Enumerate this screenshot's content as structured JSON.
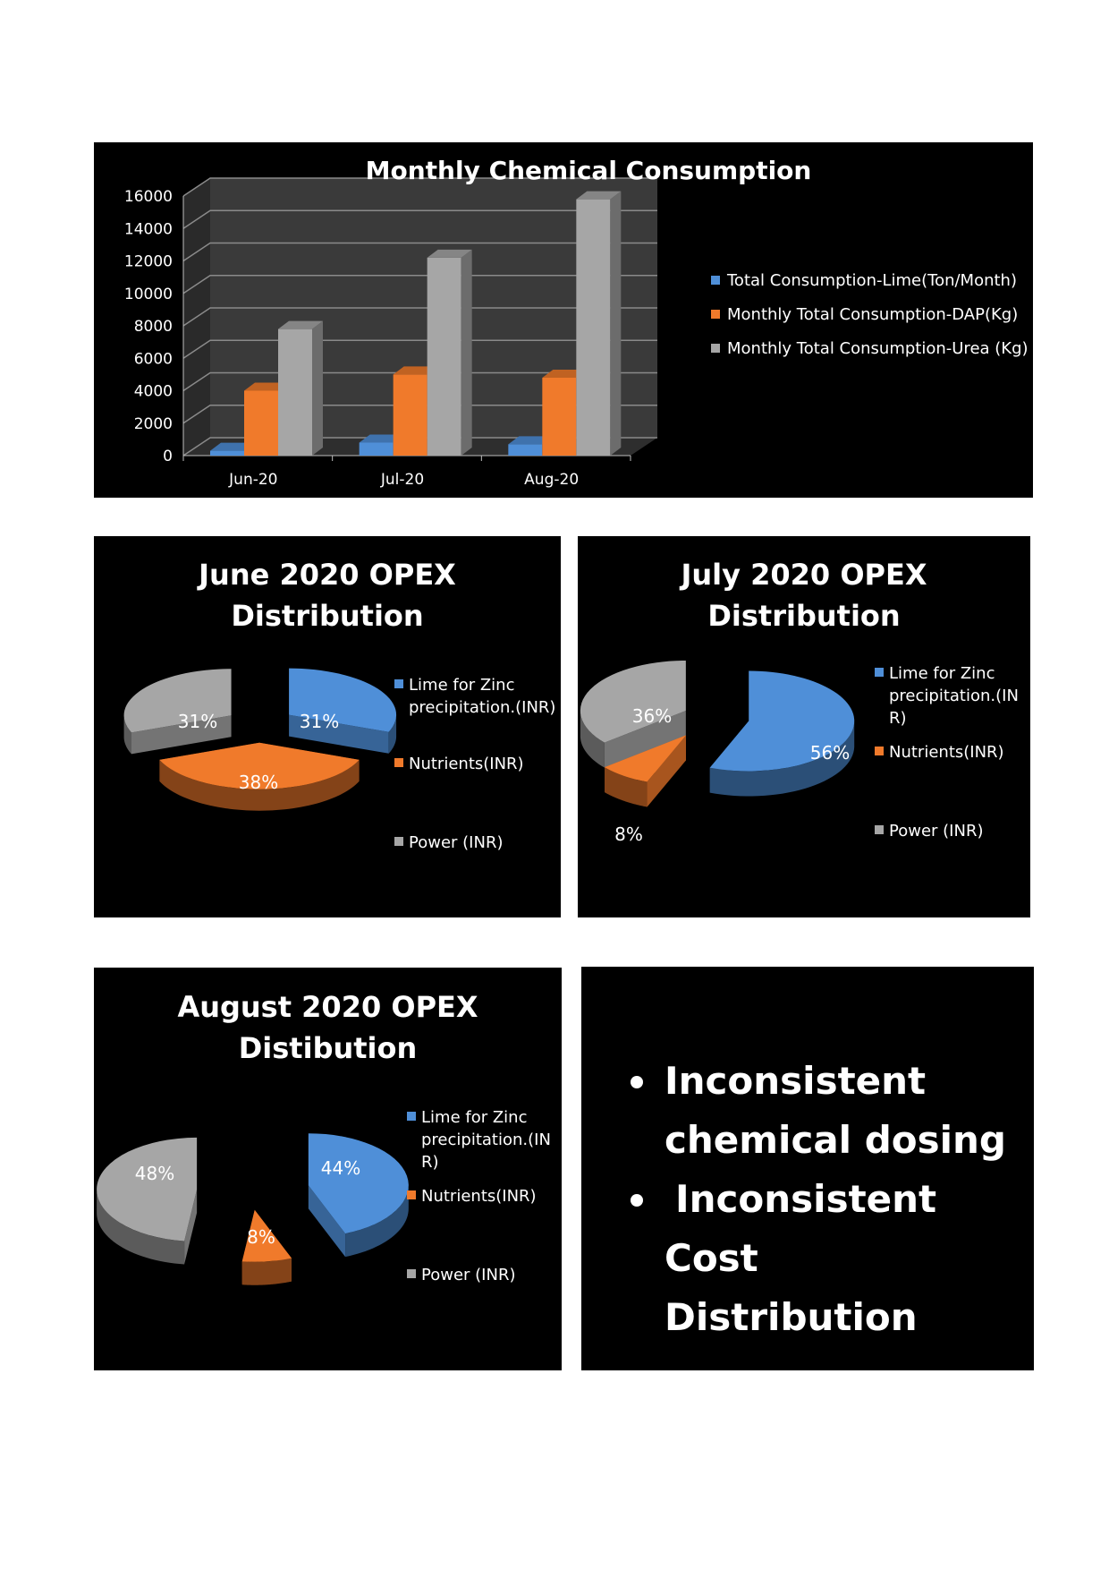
{
  "colors": {
    "lime": "#4f8fd8",
    "dap": "#f07a2b",
    "urea": "#a6a6a6"
  },
  "chart_data": [
    {
      "type": "bar",
      "title": "Monthly Chemical Consumption",
      "categories": [
        "Jun-20",
        "Jul-20",
        "Aug-20"
      ],
      "ylim": [
        0,
        16000
      ],
      "yticks": [
        "0",
        "2000",
        "4000",
        "6000",
        "8000",
        "10000",
        "12000",
        "14000",
        "16000"
      ],
      "series": [
        {
          "name": "Total Consumption-Lime(Ton/Month)",
          "values": [
            300,
            800,
            700
          ]
        },
        {
          "name": "Monthly Total Consumption-DAP(Kg)",
          "values": [
            4000,
            5000,
            4800
          ]
        },
        {
          "name": "Monthly Total Consumption-Urea (Kg)",
          "values": [
            7800,
            12200,
            15800
          ]
        }
      ],
      "legend_position": "right",
      "grid": true
    },
    {
      "type": "pie",
      "title_lines": [
        "June 2020 OPEX",
        "Distribution"
      ],
      "labels": [
        "Lime for Zinc precipitation.(INR)",
        "Nutrients(INR)",
        "Power (INR)"
      ],
      "values": [
        31,
        38,
        31
      ],
      "value_labels": [
        "31%",
        "38%",
        "31%"
      ],
      "legend_position": "right"
    },
    {
      "type": "pie",
      "title_lines": [
        "July 2020 OPEX",
        "Distribution"
      ],
      "labels": [
        "Lime for Zinc precipitation.(IN R)",
        "Nutrients(INR)",
        "Power (INR)"
      ],
      "values": [
        56,
        8,
        36
      ],
      "value_labels": [
        "56%",
        "8%",
        "36%"
      ],
      "legend_position": "right"
    },
    {
      "type": "pie",
      "title_lines": [
        "August 2020 OPEX",
        "Distibution"
      ],
      "labels": [
        "Lime for Zinc precipitation.(IN R)",
        "Nutrients(INR)",
        "Power (INR)"
      ],
      "values": [
        44,
        8,
        48
      ],
      "value_labels": [
        "44%",
        "8%",
        "48%"
      ],
      "legend_position": "right"
    }
  ],
  "legend_lines": {
    "june": [
      [
        "Lime for Zinc",
        "precipitation.(INR)"
      ],
      [
        "Nutrients(INR)"
      ],
      [
        "Power (INR)"
      ]
    ],
    "july": [
      [
        "Lime for Zinc",
        "precipitation.(IN",
        "R)"
      ],
      [
        "Nutrients(INR)"
      ],
      [
        "Power (INR)"
      ]
    ],
    "aug": [
      [
        "Lime for Zinc",
        "precipitation.(IN",
        "R)"
      ],
      [
        "Nutrients(INR)"
      ],
      [
        "Power (INR)"
      ]
    ]
  },
  "bullets": {
    "items": [
      [
        "Inconsistent",
        "chemical dosing"
      ],
      [
        "Inconsistent Cost",
        "Distribution"
      ]
    ]
  }
}
